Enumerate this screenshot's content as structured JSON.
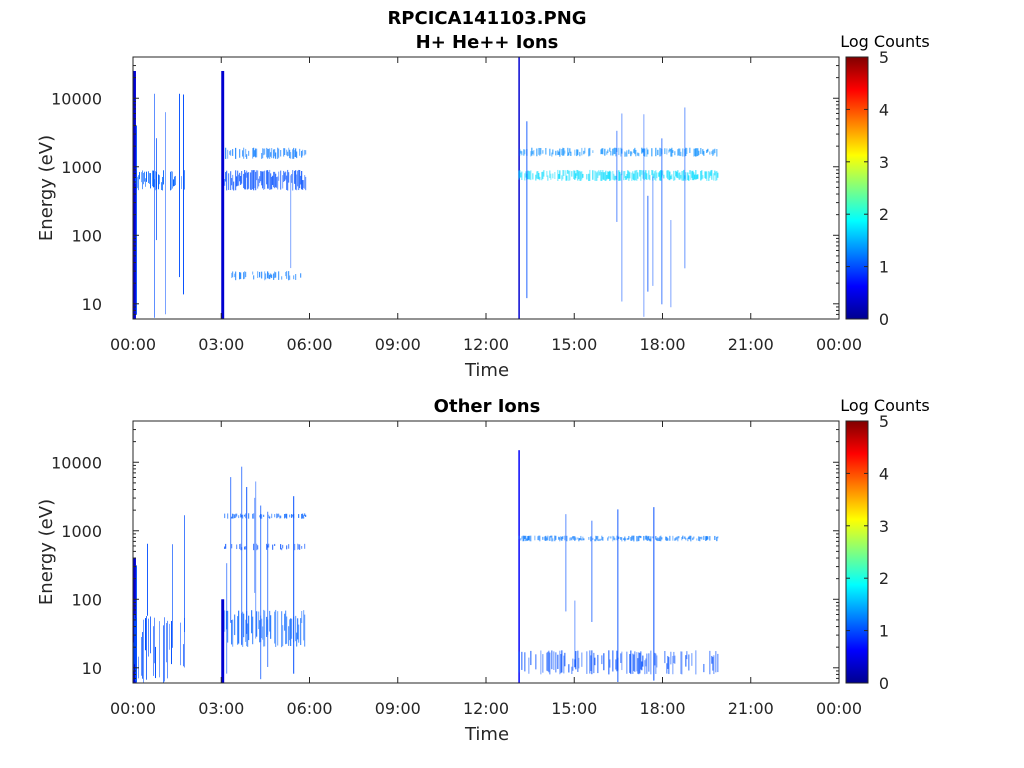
{
  "figure": {
    "title_line1": "RPCICA141103.PNG",
    "colormap_name": "jet"
  },
  "chart_data": [
    {
      "type": "heatmap",
      "title": "H+ He++ Ions",
      "xlabel": "Time",
      "ylabel": "Energy (eV)",
      "x_ticks": [
        "00:00",
        "03:00",
        "06:00",
        "09:00",
        "12:00",
        "15:00",
        "18:00",
        "21:00",
        "00:00"
      ],
      "x_range_hours": [
        0,
        24
      ],
      "y_scale": "log",
      "y_ticks": [
        {
          "value": 10,
          "label": "10"
        },
        {
          "value": 100,
          "label": "100"
        },
        {
          "value": 1000,
          "label": "1000"
        },
        {
          "value": 10000,
          "label": "10000"
        }
      ],
      "y_range_eV": [
        6,
        40000
      ],
      "colorbar": {
        "label": "Log Counts",
        "min": 0,
        "max": 5,
        "ticks": [
          "0",
          "1",
          "2",
          "3",
          "4",
          "5"
        ]
      },
      "data_coverage_hours": [
        [
          0.0,
          1.8
        ],
        [
          3.0,
          5.9
        ],
        [
          13.1,
          19.9
        ]
      ],
      "features": [
        {
          "t_start": 0.0,
          "t_end": 0.1,
          "e_min": 6,
          "e_max": 25000,
          "log_counts": 0.4,
          "density": 1.0
        },
        {
          "t_start": 3.0,
          "t_end": 3.1,
          "e_min": 6,
          "e_max": 25000,
          "log_counts": 0.4,
          "density": 1.0
        },
        {
          "t_start": 13.1,
          "t_end": 13.15,
          "e_min": 6,
          "e_max": 40000,
          "log_counts": 0.4,
          "density": 1.0
        },
        {
          "t_start": 0.0,
          "t_end": 1.8,
          "e_min": 450,
          "e_max": 900,
          "log_counts": 1.1,
          "density": 0.5
        },
        {
          "t_start": 3.1,
          "t_end": 5.9,
          "e_min": 450,
          "e_max": 900,
          "log_counts": 1.0,
          "density": 0.85
        },
        {
          "t_start": 3.1,
          "t_end": 5.9,
          "e_min": 1300,
          "e_max": 1900,
          "log_counts": 1.2,
          "density": 0.55
        },
        {
          "t_start": 13.1,
          "t_end": 19.9,
          "e_min": 620,
          "e_max": 900,
          "log_counts": 1.7,
          "density": 0.8
        },
        {
          "t_start": 13.1,
          "t_end": 19.9,
          "e_min": 1400,
          "e_max": 1900,
          "log_counts": 1.3,
          "density": 0.5
        },
        {
          "t_start": 3.1,
          "t_end": 5.9,
          "e_min": 22,
          "e_max": 30,
          "log_counts": 1.2,
          "density": 0.4
        },
        {
          "t_start": 3.1,
          "t_end": 5.9,
          "e_min": 6,
          "e_max": 30000,
          "log_counts": 1.0,
          "density": 0.06
        },
        {
          "t_start": 13.1,
          "t_end": 19.9,
          "e_min": 6,
          "e_max": 12000,
          "log_counts": 1.0,
          "density": 0.05
        },
        {
          "t_start": 0.0,
          "t_end": 1.8,
          "e_min": 6,
          "e_max": 12000,
          "log_counts": 1.0,
          "density": 0.06
        }
      ]
    },
    {
      "type": "heatmap",
      "title": "Other Ions",
      "xlabel": "Time",
      "ylabel": "Energy (eV)",
      "x_ticks": [
        "00:00",
        "03:00",
        "06:00",
        "09:00",
        "12:00",
        "15:00",
        "18:00",
        "21:00",
        "00:00"
      ],
      "x_range_hours": [
        0,
        24
      ],
      "y_scale": "log",
      "y_ticks": [
        {
          "value": 10,
          "label": "10"
        },
        {
          "value": 100,
          "label": "100"
        },
        {
          "value": 1000,
          "label": "1000"
        },
        {
          "value": 10000,
          "label": "10000"
        }
      ],
      "y_range_eV": [
        6,
        40000
      ],
      "colorbar": {
        "label": "Log Counts",
        "min": 0,
        "max": 5,
        "ticks": [
          "0",
          "1",
          "2",
          "3",
          "4",
          "5"
        ]
      },
      "data_coverage_hours": [
        [
          0.0,
          1.8
        ],
        [
          3.0,
          5.9
        ],
        [
          13.1,
          19.9
        ]
      ],
      "features": [
        {
          "t_start": 0.0,
          "t_end": 0.1,
          "e_min": 6,
          "e_max": 400,
          "log_counts": 0.4,
          "density": 1.0
        },
        {
          "t_start": 3.0,
          "t_end": 3.1,
          "e_min": 6,
          "e_max": 100,
          "log_counts": 0.4,
          "density": 1.0
        },
        {
          "t_start": 13.1,
          "t_end": 13.15,
          "e_min": 6,
          "e_max": 15000,
          "log_counts": 0.6,
          "density": 1.0
        },
        {
          "t_start": 3.1,
          "t_end": 5.9,
          "e_min": 20,
          "e_max": 70,
          "log_counts": 1.1,
          "density": 0.6
        },
        {
          "t_start": 3.1,
          "t_end": 5.9,
          "e_min": 1500,
          "e_max": 1800,
          "log_counts": 1.1,
          "density": 0.5
        },
        {
          "t_start": 3.1,
          "t_end": 5.9,
          "e_min": 520,
          "e_max": 650,
          "log_counts": 1.0,
          "density": 0.3
        },
        {
          "t_start": 13.1,
          "t_end": 19.9,
          "e_min": 700,
          "e_max": 850,
          "log_counts": 1.2,
          "density": 0.7
        },
        {
          "t_start": 13.1,
          "t_end": 19.9,
          "e_min": 8,
          "e_max": 18,
          "log_counts": 1.0,
          "density": 0.5
        },
        {
          "t_start": 0.0,
          "t_end": 1.8,
          "e_min": 6,
          "e_max": 60,
          "log_counts": 1.0,
          "density": 0.4
        },
        {
          "t_start": 3.1,
          "t_end": 5.9,
          "e_min": 6,
          "e_max": 10000,
          "log_counts": 1.0,
          "density": 0.06
        },
        {
          "t_start": 13.1,
          "t_end": 19.9,
          "e_min": 6,
          "e_max": 3000,
          "log_counts": 1.0,
          "density": 0.04
        },
        {
          "t_start": 0.0,
          "t_end": 1.8,
          "e_min": 6,
          "e_max": 2000,
          "log_counts": 1.0,
          "density": 0.05
        }
      ]
    }
  ]
}
